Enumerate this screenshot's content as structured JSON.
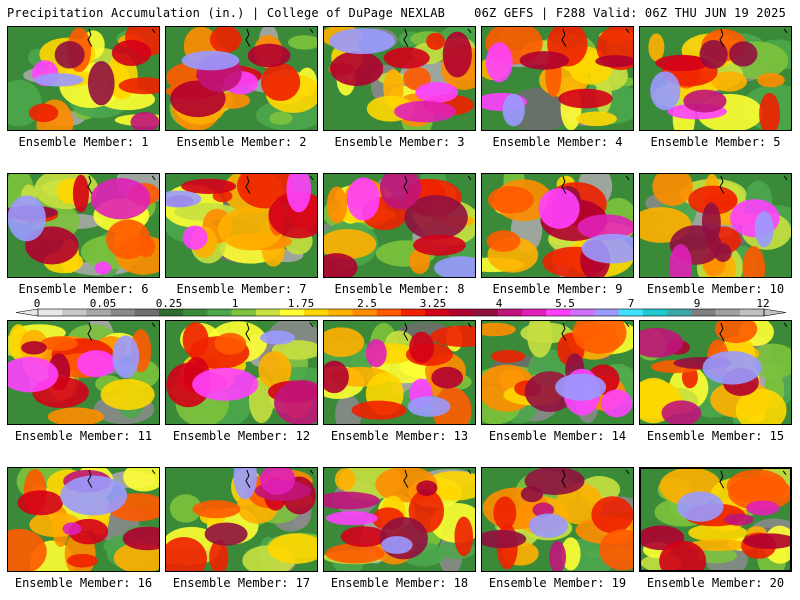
{
  "header": {
    "title": "Precipitation Accumulation (in.) | College of DuPage NEXLAB",
    "run_info": "06Z GEFS | F288 Valid: 06Z THU JUN 19 2025"
  },
  "members": [
    "Ensemble Member: 1",
    "Ensemble Member: 2",
    "Ensemble Member: 3",
    "Ensemble Member: 4",
    "Ensemble Member: 5",
    "Ensemble Member: 6",
    "Ensemble Member: 7",
    "Ensemble Member: 8",
    "Ensemble Member: 9",
    "Ensemble Member: 10",
    "Ensemble Member: 11",
    "Ensemble Member: 12",
    "Ensemble Member: 13",
    "Ensemble Member: 14",
    "Ensemble Member: 15",
    "Ensemble Member: 16",
    "Ensemble Member: 17",
    "Ensemble Member: 18",
    "Ensemble Member: 19",
    "Ensemble Member: 20"
  ],
  "selected_member_index": 19,
  "colorbar": {
    "tick_labels": [
      "0",
      "0.05",
      "0.25",
      "1",
      "1.75",
      "2.5",
      "3.25",
      "4",
      "5.5",
      "7",
      "9",
      "12"
    ],
    "colors": [
      "#e8e8e8",
      "#c8c8c8",
      "#a8a8a8",
      "#8a8a8a",
      "#6e6e6e",
      "#2e6b2e",
      "#3a8a3a",
      "#4ca64c",
      "#7cc23c",
      "#c8e040",
      "#ffff33",
      "#ffd700",
      "#ffb000",
      "#ff8c00",
      "#ff5a00",
      "#f02000",
      "#d40018",
      "#b00030",
      "#901040",
      "#c0147a",
      "#e020b8",
      "#ff40ff",
      "#d070ff",
      "#9a9aff",
      "#40e0ff",
      "#20c8d0",
      "#40a8a8",
      "#808080",
      "#a0a0a0",
      "#c0c0c0"
    ]
  }
}
